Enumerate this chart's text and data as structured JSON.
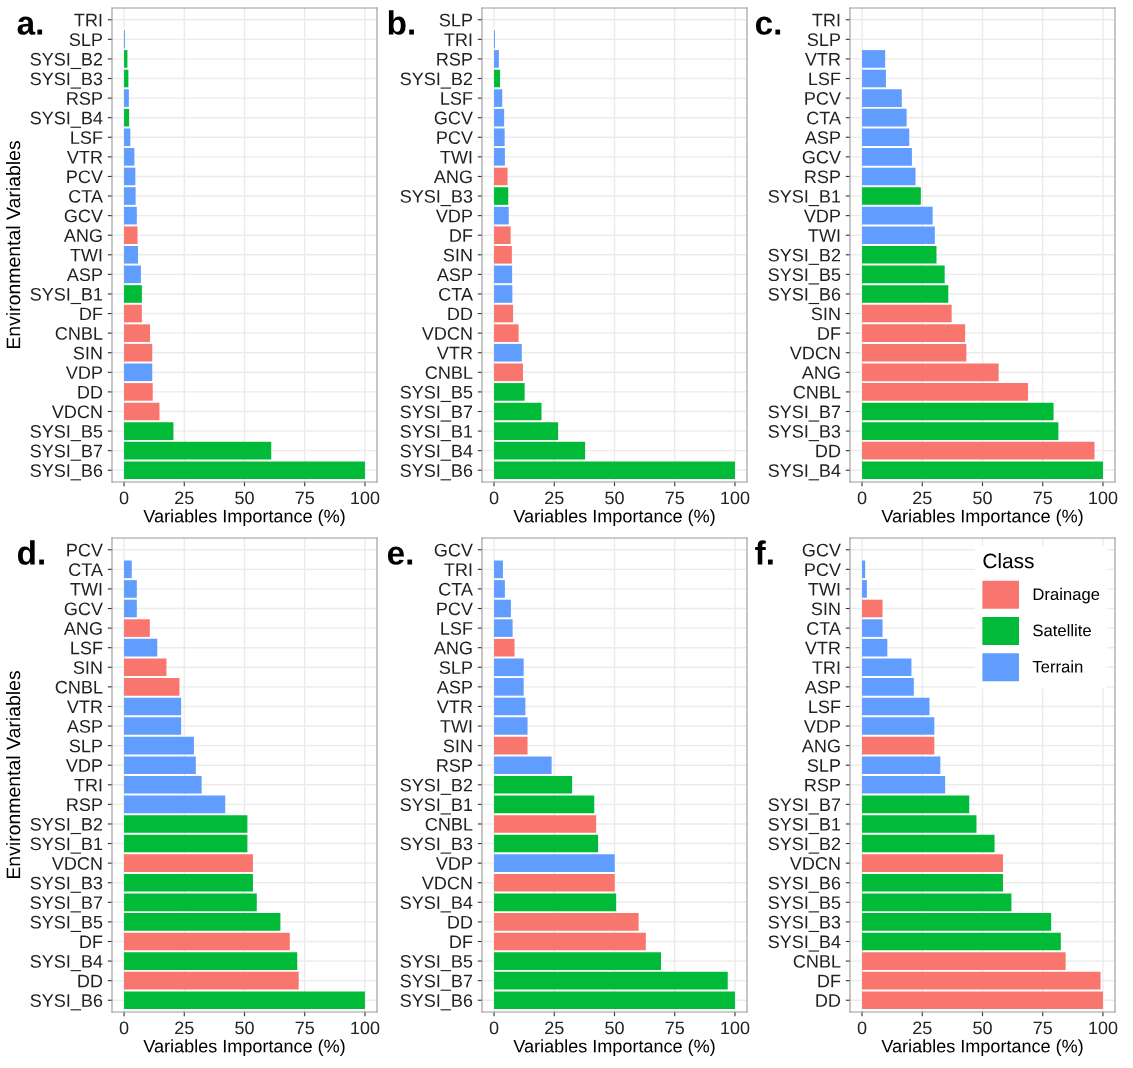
{
  "chart_data": [
    {
      "type": "bar",
      "orientation": "horizontal",
      "title": "a.",
      "xlabel": "Variables Importance (%)",
      "ylabel": "Environmental Variables",
      "xlim": [
        -5,
        105
      ],
      "xticks": [
        0,
        25,
        50,
        75,
        100
      ],
      "grid": true,
      "legend": false,
      "categories": [
        "TRI",
        "SLP",
        "SYSI_B2",
        "SYSI_B3",
        "RSP",
        "SYSI_B4",
        "LSF",
        "VTR",
        "PCV",
        "CTA",
        "GCV",
        "ANG",
        "TWI",
        "ASP",
        "SYSI_B1",
        "DF",
        "CNBL",
        "SIN",
        "VDP",
        "DD",
        "VDCN",
        "SYSI_B5",
        "SYSI_B7",
        "SYSI_B6"
      ],
      "series": [
        {
          "color": "#f8766d",
          "values": [
            null,
            null,
            null,
            null,
            null,
            null,
            null,
            null,
            null,
            null,
            null,
            5.6,
            null,
            null,
            null,
            7.4,
            10.8,
            11.7,
            null,
            11.9,
            14.7,
            null,
            null,
            null
          ]
        },
        {
          "color": "#00ba38",
          "values": [
            null,
            null,
            1.4,
            1.8,
            null,
            2.1,
            null,
            null,
            null,
            null,
            null,
            null,
            null,
            null,
            7.4,
            null,
            null,
            null,
            null,
            null,
            null,
            20.5,
            61.1,
            100
          ]
        },
        {
          "color": "#619cff",
          "values": [
            0,
            0.4,
            null,
            null,
            2,
            null,
            2.6,
            4.3,
            4.7,
            4.8,
            5.3,
            null,
            5.8,
            7,
            null,
            null,
            null,
            null,
            11.7,
            null,
            null,
            null,
            null,
            null
          ]
        }
      ]
    },
    {
      "type": "bar",
      "orientation": "horizontal",
      "title": "b.",
      "xlabel": "Variables Importance (%)",
      "xlim": [
        -5,
        105
      ],
      "xticks": [
        0,
        25,
        50,
        75,
        100
      ],
      "grid": true,
      "legend": false,
      "categories": [
        "SLP",
        "TRI",
        "RSP",
        "SYSI_B2",
        "LSF",
        "GCV",
        "PCV",
        "TWI",
        "ANG",
        "SYSI_B3",
        "VDP",
        "DF",
        "SIN",
        "ASP",
        "CTA",
        "DD",
        "VDCN",
        "VTR",
        "CNBL",
        "SYSI_B5",
        "SYSI_B7",
        "SYSI_B1",
        "SYSI_B4",
        "SYSI_B6"
      ],
      "series": [
        {
          "color": "#f8766d",
          "values": [
            null,
            null,
            null,
            null,
            null,
            null,
            null,
            null,
            5.6,
            null,
            null,
            6.9,
            7.4,
            null,
            null,
            7.9,
            10.2,
            null,
            12,
            null,
            null,
            null,
            null,
            null
          ]
        },
        {
          "color": "#00ba38",
          "values": [
            null,
            null,
            null,
            2.5,
            null,
            null,
            null,
            null,
            null,
            5.9,
            null,
            null,
            null,
            null,
            null,
            null,
            null,
            null,
            null,
            12.7,
            19.7,
            26.6,
            37.8,
            100
          ]
        },
        {
          "color": "#619cff",
          "values": [
            0,
            0.4,
            2,
            null,
            3.4,
            4.2,
            4.4,
            4.5,
            null,
            null,
            6.1,
            null,
            null,
            7.5,
            7.6,
            null,
            null,
            11.5,
            null,
            null,
            null,
            null,
            null,
            null
          ]
        }
      ]
    },
    {
      "type": "bar",
      "orientation": "horizontal",
      "title": "c.",
      "xlabel": "Variables Importance (%)",
      "xlim": [
        -5,
        105
      ],
      "xticks": [
        0,
        25,
        50,
        75,
        100
      ],
      "grid": true,
      "legend": false,
      "categories": [
        "TRI",
        "SLP",
        "VTR",
        "LSF",
        "PCV",
        "CTA",
        "ASP",
        "GCV",
        "RSP",
        "SYSI_B1",
        "VDP",
        "TWI",
        "SYSI_B2",
        "SYSI_B5",
        "SYSI_B6",
        "SIN",
        "DF",
        "VDCN",
        "ANG",
        "CNBL",
        "SYSI_B7",
        "SYSI_B3",
        "DD",
        "SYSI_B4"
      ],
      "series": [
        {
          "color": "#f8766d",
          "values": [
            null,
            null,
            null,
            null,
            null,
            null,
            null,
            null,
            null,
            null,
            null,
            null,
            null,
            null,
            null,
            37.2,
            42.8,
            43.3,
            56.7,
            68.9,
            null,
            null,
            96.5,
            null
          ]
        },
        {
          "color": "#00ba38",
          "values": [
            null,
            null,
            null,
            null,
            null,
            null,
            null,
            null,
            null,
            24.4,
            null,
            null,
            30.9,
            34.3,
            35.8,
            null,
            null,
            null,
            null,
            null,
            79.5,
            81.5,
            null,
            100
          ]
        },
        {
          "color": "#619cff",
          "values": [
            0,
            0,
            9.6,
            9.9,
            16.5,
            18.5,
            19.6,
            20.7,
            22.2,
            null,
            29.3,
            30.2,
            null,
            null,
            null,
            null,
            null,
            null,
            null,
            null,
            null,
            null,
            null,
            null
          ]
        }
      ]
    },
    {
      "type": "bar",
      "orientation": "horizontal",
      "title": "d.",
      "xlabel": "Variables Importance (%)",
      "ylabel": "Environmental Variables",
      "xlim": [
        -5,
        105
      ],
      "xticks": [
        0,
        25,
        50,
        75,
        100
      ],
      "grid": true,
      "legend": false,
      "categories": [
        "PCV",
        "CTA",
        "TWI",
        "GCV",
        "ANG",
        "LSF",
        "SIN",
        "CNBL",
        "VTR",
        "ASP",
        "SLP",
        "VDP",
        "TRI",
        "RSP",
        "SYSI_B2",
        "SYSI_B1",
        "VDCN",
        "SYSI_B3",
        "SYSI_B7",
        "SYSI_B5",
        "DF",
        "SYSI_B4",
        "DD",
        "SYSI_B6"
      ],
      "series": [
        {
          "color": "#f8766d",
          "values": [
            null,
            null,
            null,
            null,
            10.7,
            null,
            17.6,
            23,
            null,
            null,
            null,
            null,
            null,
            null,
            null,
            null,
            53.5,
            null,
            null,
            null,
            68.8,
            null,
            72.5,
            null
          ]
        },
        {
          "color": "#00ba38",
          "values": [
            null,
            null,
            null,
            null,
            null,
            null,
            null,
            null,
            null,
            null,
            null,
            null,
            null,
            null,
            51.2,
            51.2,
            null,
            53.5,
            55.1,
            64.9,
            null,
            71.9,
            null,
            100
          ]
        },
        {
          "color": "#619cff",
          "values": [
            0,
            3.2,
            5.3,
            5.3,
            null,
            13.8,
            null,
            null,
            23.7,
            23.7,
            29,
            29.8,
            32.2,
            42,
            null,
            null,
            null,
            null,
            null,
            null,
            null,
            null,
            null,
            null
          ]
        }
      ]
    },
    {
      "type": "bar",
      "orientation": "horizontal",
      "title": "e.",
      "xlabel": "Variables Importance (%)",
      "xlim": [
        -5,
        105
      ],
      "xticks": [
        0,
        25,
        50,
        75,
        100
      ],
      "grid": true,
      "legend": false,
      "categories": [
        "GCV",
        "TRI",
        "CTA",
        "PCV",
        "LSF",
        "ANG",
        "SLP",
        "ASP",
        "VTR",
        "TWI",
        "SIN",
        "RSP",
        "SYSI_B2",
        "SYSI_B1",
        "CNBL",
        "SYSI_B3",
        "VDP",
        "VDCN",
        "SYSI_B4",
        "DD",
        "DF",
        "SYSI_B5",
        "SYSI_B7",
        "SYSI_B6"
      ],
      "series": [
        {
          "color": "#f8766d",
          "values": [
            null,
            null,
            null,
            null,
            null,
            8.5,
            null,
            null,
            null,
            null,
            13.9,
            null,
            null,
            null,
            42.4,
            null,
            null,
            50.1,
            null,
            60,
            63,
            null,
            null,
            null
          ]
        },
        {
          "color": "#00ba38",
          "values": [
            null,
            null,
            null,
            null,
            null,
            null,
            null,
            null,
            null,
            null,
            null,
            null,
            32.4,
            41.6,
            null,
            43.2,
            null,
            null,
            50.7,
            null,
            null,
            69.3,
            97,
            100
          ]
        },
        {
          "color": "#619cff",
          "values": [
            0,
            3.7,
            4.5,
            7,
            7.7,
            null,
            12.3,
            12.3,
            13,
            13.9,
            null,
            23.9,
            null,
            null,
            null,
            null,
            50.1,
            null,
            null,
            null,
            null,
            null,
            null,
            null
          ]
        }
      ]
    },
    {
      "type": "bar",
      "orientation": "horizontal",
      "title": "f.",
      "xlabel": "Variables Importance (%)",
      "xlim": [
        -5,
        105
      ],
      "xticks": [
        0,
        25,
        50,
        75,
        100
      ],
      "grid": true,
      "legend": "top right",
      "legend_title": "Class",
      "categories": [
        "GCV",
        "PCV",
        "TWI",
        "SIN",
        "CTA",
        "VTR",
        "TRI",
        "ASP",
        "LSF",
        "VDP",
        "ANG",
        "SLP",
        "RSP",
        "SYSI_B7",
        "SYSI_B1",
        "SYSI_B2",
        "VDCN",
        "SYSI_B6",
        "SYSI_B5",
        "SYSI_B3",
        "SYSI_B4",
        "CNBL",
        "DF",
        "DD"
      ],
      "series": [
        {
          "name": "Drainage",
          "color": "#f8766d",
          "values": [
            null,
            null,
            null,
            8.5,
            null,
            null,
            null,
            null,
            null,
            null,
            30,
            null,
            null,
            null,
            null,
            null,
            58.5,
            null,
            null,
            null,
            null,
            84.5,
            99,
            100
          ]
        },
        {
          "name": "Satellite",
          "color": "#00ba38",
          "values": [
            null,
            null,
            null,
            null,
            null,
            null,
            null,
            null,
            null,
            null,
            null,
            null,
            null,
            44.5,
            47.5,
            55,
            null,
            58.5,
            62,
            78.5,
            82.5,
            null,
            null,
            null
          ]
        },
        {
          "name": "Terrain",
          "color": "#619cff",
          "values": [
            0,
            1.3,
            2,
            null,
            8.5,
            10.5,
            20.5,
            21.5,
            28,
            30,
            null,
            32.5,
            34.5,
            null,
            null,
            null,
            null,
            null,
            null,
            null,
            null,
            null,
            null,
            null
          ]
        }
      ]
    }
  ]
}
